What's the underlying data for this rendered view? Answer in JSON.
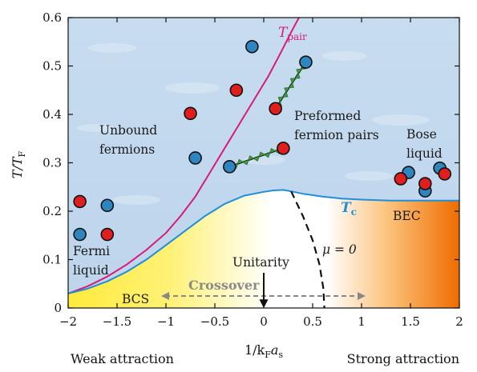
{
  "chart_data": {
    "type": "scatter",
    "title": "",
    "xlabel": "1/k_F a_s",
    "ylabel": "T/T_F",
    "xlim": [
      -2,
      2
    ],
    "ylim": [
      0,
      0.6
    ],
    "x_ticks": [
      "−2",
      "−1.5",
      "−1",
      "−0.5",
      "0",
      "0.5",
      "1",
      "1.5",
      "2"
    ],
    "y_ticks": [
      "0",
      "0.1",
      "0.2",
      "0.3",
      "0.4",
      "0.5",
      "0.6"
    ],
    "x_tick_values": [
      -2,
      -1.5,
      -1,
      -0.5,
      0,
      0.5,
      1,
      1.5,
      2
    ],
    "y_tick_values": [
      0,
      0.1,
      0.2,
      0.3,
      0.4,
      0.5,
      0.6
    ],
    "grid": false,
    "background_colors": {
      "normal_phase": "#c4d9ee",
      "bcs_yellow": "#ffeb3b",
      "bec_orange": "#ef6c00",
      "tpair_line": "#d81b78",
      "tc_line": "#1e8fd8",
      "blue_dot": "#2e86c1",
      "red_dot": "#e01e1e",
      "pair_bond": "#43a047"
    },
    "series": [
      {
        "name": "T_pair",
        "points": [
          [
            -2.0,
            0.03
          ],
          [
            -1.8,
            0.045
          ],
          [
            -1.6,
            0.065
          ],
          [
            -1.4,
            0.09
          ],
          [
            -1.2,
            0.12
          ],
          [
            -1.0,
            0.155
          ],
          [
            -0.85,
            0.19
          ],
          [
            -0.7,
            0.23
          ],
          [
            -0.55,
            0.28
          ],
          [
            -0.4,
            0.33
          ],
          [
            -0.25,
            0.38
          ],
          [
            -0.1,
            0.43
          ],
          [
            0.05,
            0.48
          ],
          [
            0.18,
            0.53
          ],
          [
            0.28,
            0.57
          ],
          [
            0.36,
            0.6
          ]
        ]
      },
      {
        "name": "T_c",
        "points": [
          [
            -2.0,
            0.03
          ],
          [
            -1.8,
            0.04
          ],
          [
            -1.6,
            0.055
          ],
          [
            -1.4,
            0.075
          ],
          [
            -1.2,
            0.1
          ],
          [
            -1.0,
            0.13
          ],
          [
            -0.8,
            0.16
          ],
          [
            -0.6,
            0.19
          ],
          [
            -0.4,
            0.215
          ],
          [
            -0.2,
            0.232
          ],
          [
            0.0,
            0.24
          ],
          [
            0.1,
            0.243
          ],
          [
            0.2,
            0.244
          ],
          [
            0.28,
            0.241
          ],
          [
            0.4,
            0.236
          ],
          [
            0.6,
            0.23
          ],
          [
            0.8,
            0.226
          ],
          [
            1.0,
            0.224
          ],
          [
            1.3,
            0.222
          ],
          [
            1.6,
            0.222
          ],
          [
            2.0,
            0.222
          ]
        ]
      },
      {
        "name": "mu_zero",
        "points": [
          [
            0.28,
            0.241
          ],
          [
            0.4,
            0.19
          ],
          [
            0.5,
            0.14
          ],
          [
            0.57,
            0.09
          ],
          [
            0.61,
            0.04
          ],
          [
            0.62,
            0.0
          ]
        ]
      }
    ],
    "blue_dots": [
      [
        -1.88,
        0.152
      ],
      [
        -1.6,
        0.212
      ],
      [
        -0.7,
        0.31
      ],
      [
        -0.35,
        0.292
      ],
      [
        -0.12,
        0.54
      ],
      [
        0.43,
        0.508
      ],
      [
        1.48,
        0.28
      ],
      [
        1.65,
        0.242
      ],
      [
        1.8,
        0.289
      ]
    ],
    "red_dots": [
      [
        -1.88,
        0.22
      ],
      [
        -1.6,
        0.152
      ],
      [
        -0.75,
        0.402
      ],
      [
        -0.28,
        0.45
      ],
      [
        0.12,
        0.412
      ],
      [
        0.2,
        0.33
      ],
      [
        1.4,
        0.267
      ],
      [
        1.65,
        0.257
      ],
      [
        1.85,
        0.277
      ]
    ],
    "pair_bonds": [
      [
        [
          0.12,
          0.412
        ],
        [
          0.43,
          0.508
        ]
      ],
      [
        [
          -0.35,
          0.292
        ],
        [
          0.2,
          0.33
        ]
      ]
    ],
    "arrows": {
      "crossover": [
        [
          -1.0,
          0.04
        ],
        [
          1.0,
          0.04
        ]
      ],
      "unitarity": [
        [
          0.0,
          0.1
        ],
        [
          0.0,
          0.0
        ]
      ]
    },
    "labels": {
      "tpair": {
        "main": "T",
        "sub": "pair"
      },
      "tc": {
        "main": "T",
        "sub": "c"
      },
      "unbound_line1": "Unbound",
      "unbound_line2": "fermions",
      "preformed_line1": "Preformed",
      "preformed_line2": "fermion pairs",
      "bose_line1": "Bose",
      "bose_line2": "liquid",
      "fermi_line1": "Fermi",
      "fermi_line2": "liquid",
      "mu": "μ = 0",
      "unitarity": "Unitarity",
      "crossover": "Crossover",
      "bcs": "BCS",
      "bec": "BEC",
      "weak": "Weak attraction",
      "strong": "Strong attraction",
      "ylabel_main": "T/T",
      "ylabel_sub": "F",
      "xlabel_pre": "1/k",
      "xlabel_sub1": "F",
      "xlabel_mid": "a",
      "xlabel_sub2": "s"
    }
  }
}
